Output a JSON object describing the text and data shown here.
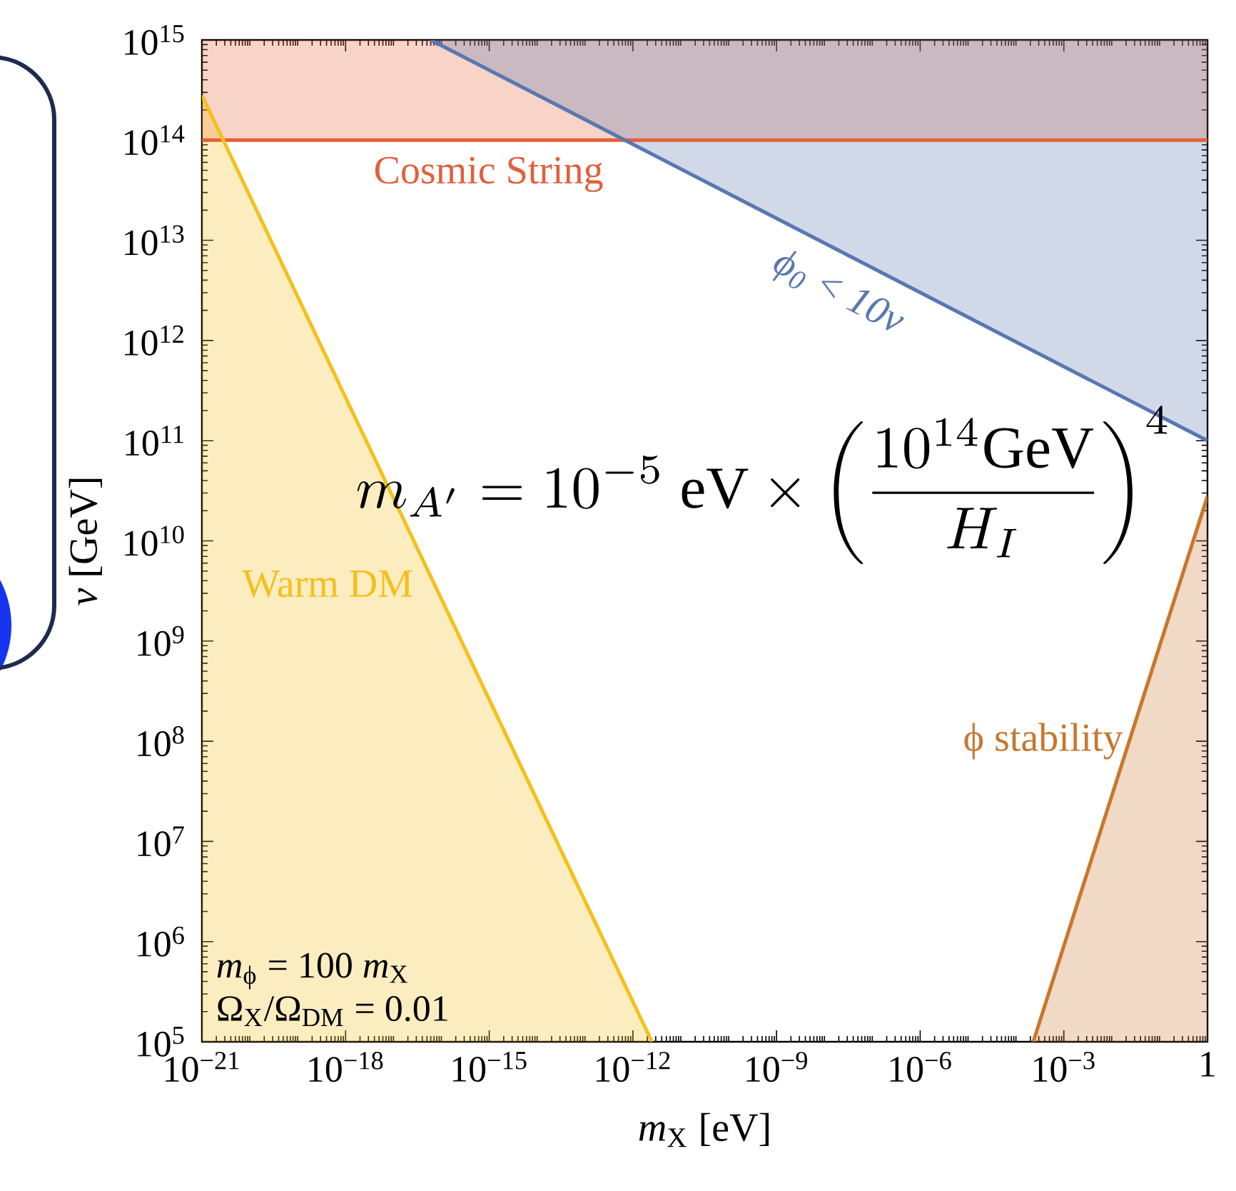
{
  "chart_data": {
    "type": "line",
    "log": "xy",
    "marker": "none",
    "line_style": "solid",
    "xlabel": "*m*$_{X}$ [eV]",
    "ylabel": "*v* [GeV]",
    "xlim": [
      1e-21,
      1
    ],
    "ylim": [
      100000.0,
      1000000000000000.0
    ],
    "xticks": [
      {
        "value": 1e-21,
        "label": "10$^{−21}$"
      },
      {
        "value": 1e-18,
        "label": "10$^{−18}$"
      },
      {
        "value": 1e-15,
        "label": "10$^{−15}$"
      },
      {
        "value": 1e-12,
        "label": "10$^{−12}$"
      },
      {
        "value": 1e-09,
        "label": "10$^{−9}$"
      },
      {
        "value": 1e-06,
        "label": "10$^{−6}$"
      },
      {
        "value": 0.001,
        "label": "10$^{−3}$"
      },
      1
    ],
    "yticks": [
      {
        "value": 100000.0,
        "label": "10$^{5}$"
      },
      {
        "value": 1000000.0,
        "label": "10$^{6}$"
      },
      {
        "value": 10000000.0,
        "label": "10$^{7}$"
      },
      {
        "value": 100000000.0,
        "label": "10$^{8}$"
      },
      {
        "value": 1000000000.0,
        "label": "10$^{9}$"
      },
      {
        "value": 10000000000.0,
        "label": "10$^{10}$"
      },
      {
        "value": 100000000000.0,
        "label": "10$^{11}$"
      },
      {
        "value": 1000000000000.0,
        "label": "10$^{12}$"
      },
      {
        "value": 10000000000000.0,
        "label": "10$^{13}$"
      },
      {
        "value": 100000000000000.0,
        "label": "10$^{14}$"
      },
      {
        "value": 1000000000000000.0,
        "label": "10$^{15}$"
      }
    ],
    "series": [
      {
        "name": "Cosmic String",
        "color": "#e2603b",
        "x": [
          1e-21,
          1
        ],
        "values": [
          100000000000000.0,
          100000000000000.0
        ],
        "lower": [
          100000000000000.0,
          100000000000000.0
        ],
        "upper": [
          1000000000000000.0,
          1000000000000000.0
        ]
      },
      {
        "name": "ϕ$_{0}$ < 10v",
        "color": "#5878b0",
        "x": [
          6e-17,
          1
        ],
        "values": [
          1000000000000000.0,
          100000000000.0
        ],
        "lower": [
          1000000000000000.0,
          100000000000.0
        ],
        "upper": [
          1000000000000000.0,
          1000000000000000.0
        ]
      },
      {
        "name": "Warm DM",
        "color": "#f4c01c",
        "x": [
          1e-21,
          2.5e-12
        ],
        "values": [
          280000000000000.0,
          100000.0
        ],
        "lower": [
          100000.0,
          100000.0
        ],
        "upper": [
          280000000000000.0,
          100000.0
        ]
      },
      {
        "name": "ϕ stability",
        "color": "#c8772d",
        "x": [
          0.00023,
          1
        ],
        "values": [
          100000.0,
          28000000000.0
        ],
        "lower": [
          100000.0,
          100000.0
        ],
        "upper": [
          100000.0,
          28000000000.0
        ]
      }
    ],
    "annotations": [
      "m_{A'} = 10^{-5}\\ \\mathrm{eV} \\times \\left(\\frac{10^{14}\\mathrm{GeV}}{H_I}\\right)^4",
      "*m*$_{ϕ}$ = 100 *m*$_{X}$",
      "Ω$_{X}$/Ω$_{DM}$ = 0.01"
    ]
  }
}
